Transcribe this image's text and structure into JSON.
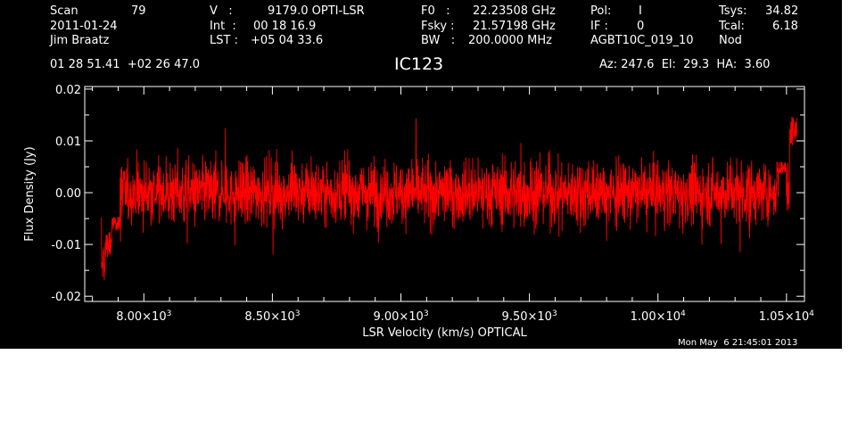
{
  "header": {
    "col1": {
      "scan_label": "Scan",
      "scan_value": "79",
      "date": "2011-01-24",
      "observer": "Jim Braatz"
    },
    "col2": {
      "v_label": "V   :",
      "v_value": "9179.0 OPTI-LSR",
      "int_label": "Int  :",
      "int_value": "00 18 16.9",
      "lst_label": "LST :",
      "lst_value": "+05 04 33.6"
    },
    "col3": {
      "f0_label": "F0   :",
      "f0_value": "22.23508 GHz",
      "fsky_label": "Fsky :",
      "fsky_value": "21.57198 GHz",
      "bw_label": "BW   :",
      "bw_value": "200.0000 MHz"
    },
    "col4": {
      "pol_label": "Pol:",
      "pol_value": "I",
      "if_label": "IF :",
      "if_value": "0",
      "project": "AGBT10C_019_10"
    },
    "col5": {
      "tsys_label": "Tsys:",
      "tsys_value": "34.82",
      "tcal_label": "Tcal:",
      "tcal_value": "6.18",
      "mode": "Nod"
    },
    "coords": "01 28 51.41  +02 26 47.0",
    "source": "IC123",
    "pointing": "Az: 247.6  El:  29.3  HA:  3.60",
    "timestamp": "Mon May  6 21:45:01 2013"
  },
  "colors": {
    "background": "#000000",
    "foreground": "#ffffff",
    "trace": "#ff0000"
  },
  "chart_data": {
    "type": "line",
    "title": "IC123",
    "xlabel": "LSR Velocity (km/s) OPTICAL",
    "ylabel": "Flux Density (Jy)",
    "xlim": [
      7770,
      10570
    ],
    "ylim": [
      -0.021,
      0.0205
    ],
    "x_ticks": [
      {
        "value": 8000,
        "mantissa": "8.00",
        "exp": "3"
      },
      {
        "value": 8500,
        "mantissa": "8.50",
        "exp": "3"
      },
      {
        "value": 9000,
        "mantissa": "9.00",
        "exp": "3"
      },
      {
        "value": 9500,
        "mantissa": "9.50",
        "exp": "3"
      },
      {
        "value": 10000,
        "mantissa": "1.00",
        "exp": "4"
      },
      {
        "value": 10500,
        "mantissa": "1.05",
        "exp": "4"
      }
    ],
    "y_ticks": [
      {
        "value": 0.02,
        "label": "0.02"
      },
      {
        "value": 0.01,
        "label": "0.01"
      },
      {
        "value": 0.0,
        "label": "0.00"
      },
      {
        "value": -0.01,
        "label": "-0.01"
      },
      {
        "value": -0.02,
        "label": "-0.02"
      }
    ],
    "grid": false,
    "series": [
      {
        "x_start": 7835,
        "x_end": 10540,
        "rms": 0.0045,
        "mean": 0.0,
        "features": [
          {
            "x": 7840,
            "y": -0.0175
          },
          {
            "x": 7860,
            "y": -0.0125
          },
          {
            "x": 7890,
            "y": -0.0075
          },
          {
            "x": 10480,
            "y": 0.006
          },
          {
            "x": 10530,
            "y": 0.015
          }
        ]
      }
    ]
  }
}
